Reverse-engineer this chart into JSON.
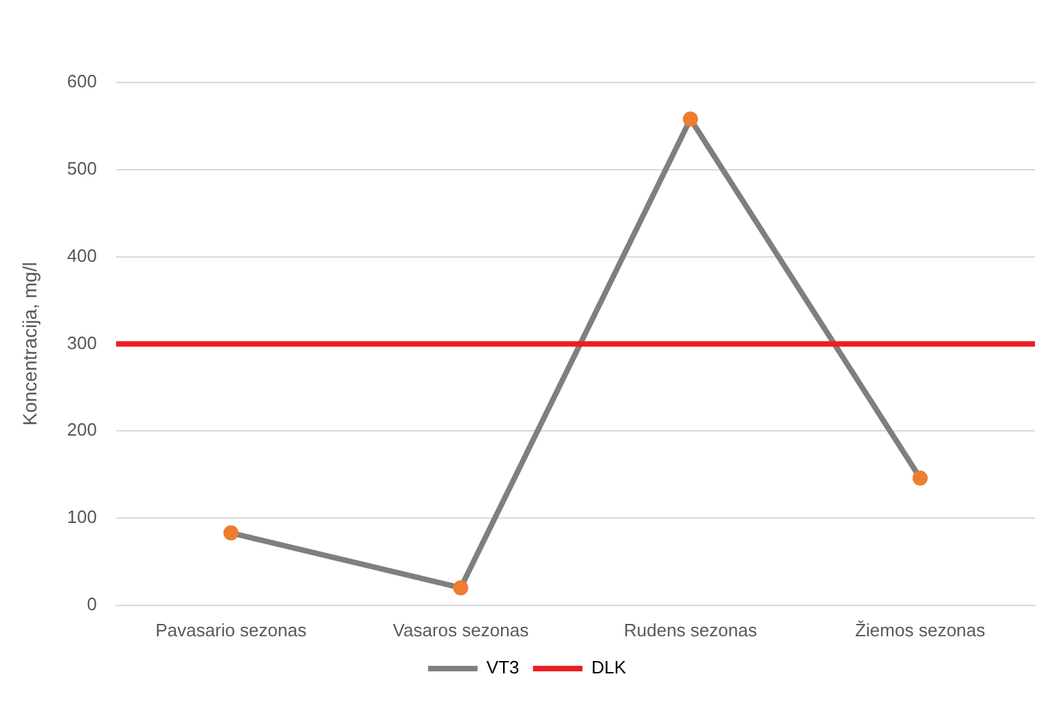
{
  "chart_data": {
    "type": "line",
    "ylabel": "Koncentracija, mg/l",
    "categories": [
      "Pavasario sezonas",
      "Vasaros sezonas",
      "Rudens sezonas",
      "Žiemos sezonas"
    ],
    "series": [
      {
        "name": "VT3",
        "color": "#7f7f7f",
        "colors": [
          "#ed7d31",
          "#ed7d31",
          "#ed7d31",
          "#ed7d31"
        ],
        "values": [
          83,
          20,
          558,
          146
        ]
      }
    ],
    "ref_lines": [
      {
        "axis": "y",
        "value": 300,
        "label": "DLK",
        "color": "#ee1c25"
      }
    ],
    "ylim": [
      0,
      600
    ],
    "yticks": [
      0,
      100,
      200,
      300,
      400,
      500,
      600
    ],
    "grid": "y",
    "legend": "bottom",
    "marker": "circle",
    "line_style": "solid"
  }
}
